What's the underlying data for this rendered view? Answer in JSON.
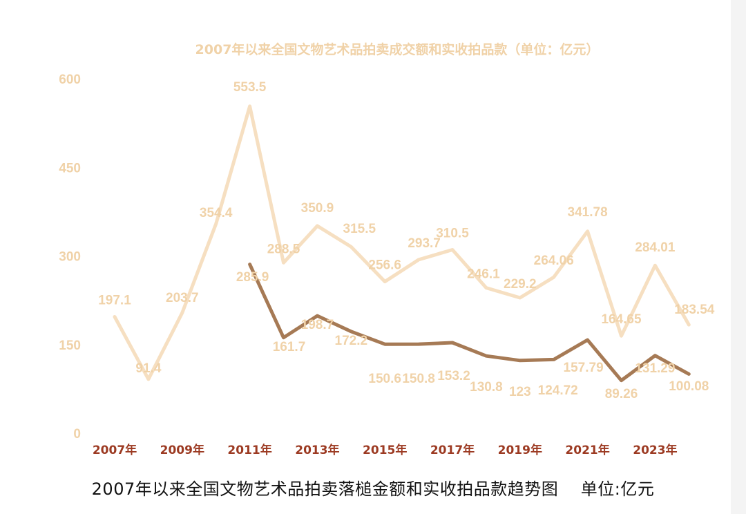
{
  "caption": {
    "text": "2007年以来全国文物艺术品拍卖落槌金额和实收拍品款趋势图    单位:亿元"
  },
  "colors": {
    "series_a": "#f6dfc1",
    "series_b": "#a67a55",
    "labels": "#f0d2a8",
    "axis_ticks": "#9c3a22"
  },
  "chart_data": {
    "type": "line",
    "title": "2007年以来全国文物艺术品拍卖成交额和实收拍品款（单位：亿元）",
    "x": [
      "2007",
      "2008",
      "2009",
      "2010",
      "2011",
      "2012",
      "2013",
      "2014",
      "2015",
      "2016",
      "2017",
      "2018",
      "2019",
      "2020",
      "2021",
      "2022",
      "2023",
      "2024"
    ],
    "xtick_labels": [
      "2007年",
      "2009年",
      "2011年",
      "2013年",
      "2015年",
      "2017年",
      "2019年",
      "2021年",
      "2023年"
    ],
    "yticks": [
      "0",
      "150",
      "300",
      "450",
      "600"
    ],
    "ylim": [
      0,
      600
    ],
    "grid": false,
    "series": [
      {
        "values": [
          197.1,
          91.4,
          203.7,
          354.4,
          553.5,
          288.5,
          350.9,
          315.5,
          256.6,
          293.7,
          310.5,
          246.1,
          229.2,
          264.06,
          341.78,
          164.65,
          284.01,
          183.54
        ],
        "labels": [
          "197.1",
          "91.4",
          "203.7",
          "354.4",
          "553.5",
          "288.5",
          "350.9",
          "315.5",
          "256.6",
          "293.7",
          "310.5",
          "246.1",
          "229.2",
          "264.06",
          "341.78",
          "164.65",
          "284.01",
          "183.54"
        ]
      },
      {
        "values": [
          null,
          null,
          null,
          null,
          285.9,
          161.7,
          198.7,
          172.2,
          150.6,
          150.8,
          153.2,
          130.8,
          123,
          124.72,
          157.79,
          89.26,
          131.29,
          100.08
        ],
        "labels": [
          null,
          null,
          null,
          null,
          "285.9",
          "161.7",
          "198.7",
          "172.2",
          "150.6",
          "150.8",
          "153.2",
          "130.8",
          "123",
          "124.72",
          "157.79",
          "89.26",
          "131.29",
          "100.08"
        ]
      }
    ]
  }
}
